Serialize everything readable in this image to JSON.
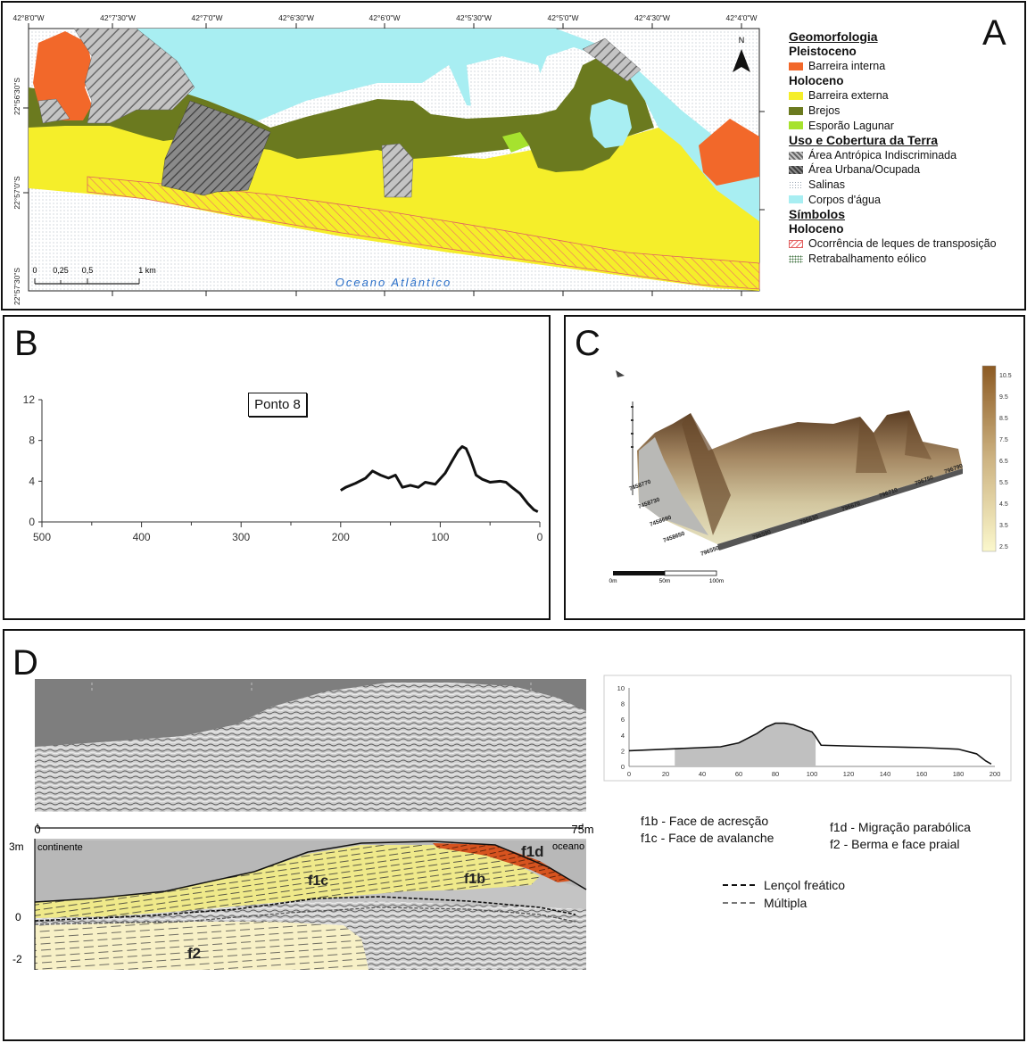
{
  "panel_a": {
    "letter": "A",
    "top_lon_labels": [
      "42°8'0\"W",
      "42°7'30\"W",
      "42°7'0\"W",
      "42°6'30\"W",
      "42°6'0\"W",
      "42°5'30\"W",
      "42°5'0\"W",
      "42°4'30\"W",
      "42°4'0\"W"
    ],
    "left_lat_labels": [
      "22°56'30\"S",
      "22°57'0\"S",
      "22°57'30\"S"
    ],
    "north_label": "N",
    "scale_labels": [
      "0",
      "0,25",
      "0,5",
      "1 km"
    ],
    "ocean_label": "Oceano Atlântico",
    "legend": {
      "title_geo": "Geomorfologia",
      "pleistoceno": "Pleistoceno",
      "barreira_interna": "Barreira interna",
      "holoceno": "Holoceno",
      "barreira_externa": "Barreira externa",
      "brejos": "Brejos",
      "esporao": "Esporão Lagunar",
      "title_uso": "Uso e Cobertura da Terra",
      "antropica": "Área Antrópica Indiscriminada",
      "urbana": "Área Urbana/Ocupada",
      "salinas": "Salinas",
      "corpos": "Corpos d'água",
      "title_simb": "Símbolos",
      "holoceno2": "Holoceno",
      "leques": "Ocorrência de leques de transposição",
      "eolico": "Retrabalhamento eólico"
    },
    "colors": {
      "barreira_interna": "#f2682a",
      "barreira_externa": "#f5ee2a",
      "brejos": "#6b7a1f",
      "esporao": "#a6e22e",
      "antropica": "#b8b8b8",
      "urbana": "#7a7a7a",
      "corpos": "#a8eef2"
    }
  },
  "panel_b": {
    "letter": "B",
    "label": "Ponto 8",
    "chart_data": {
      "type": "line",
      "x": [
        200,
        195,
        185,
        175,
        168,
        160,
        152,
        145,
        138,
        130,
        122,
        115,
        105,
        95,
        88,
        82,
        78,
        74,
        70,
        64,
        58,
        50,
        40,
        34,
        28,
        20,
        12,
        6,
        2
      ],
      "y": [
        3.1,
        3.4,
        3.8,
        4.3,
        5.0,
        4.6,
        4.3,
        4.6,
        3.4,
        3.6,
        3.4,
        3.9,
        3.7,
        4.8,
        6.0,
        7.0,
        7.4,
        7.2,
        6.3,
        4.6,
        4.2,
        3.9,
        4.0,
        3.9,
        3.4,
        2.8,
        1.8,
        1.2,
        1.0
      ],
      "xlim": [
        500,
        0
      ],
      "ylim": [
        0,
        12
      ],
      "xticks": [
        500,
        400,
        300,
        200,
        100,
        0
      ],
      "yticks": [
        0,
        4,
        8,
        12
      ]
    }
  },
  "panel_c": {
    "letter": "C",
    "colorbar_ticks": [
      "10.5",
      "9.5",
      "8.5",
      "7.5",
      "6.5",
      "5.5",
      "4.5",
      "3.5",
      "2.5"
    ],
    "scale_labels": [
      "0m",
      "50m",
      "100m"
    ],
    "y_axis_labels": [
      "7458770",
      "7458730",
      "7458690",
      "7458650"
    ],
    "x_axis_labels": [
      "796550",
      "796590",
      "796630",
      "796670",
      "796710",
      "796750",
      "796790"
    ]
  },
  "panel_d": {
    "letter": "D",
    "scale_start": "0",
    "scale_end": "75m",
    "depth_labels": [
      "3m",
      "0",
      "-2"
    ],
    "continente": "continente",
    "oceano": "oceano",
    "facies": {
      "f1c": "f1c",
      "f1b": "f1b",
      "f1d": "f1d",
      "f2": "f2"
    },
    "descriptions": {
      "f1b": "f1b - Face de acresção",
      "f1c": "f1c - Face de avalanche",
      "f1d": "f1d - Migração parabólica",
      "f2": "f2 - Berma e face praial"
    },
    "line_legend": {
      "lencol": "Lençol freático",
      "multipla": "Múltipla"
    },
    "chart_data": {
      "type": "area",
      "x": [
        0,
        10,
        20,
        30,
        40,
        50,
        60,
        70,
        75,
        80,
        85,
        90,
        95,
        100,
        102,
        105,
        120,
        140,
        160,
        180,
        190,
        195,
        198
      ],
      "y": [
        2.0,
        2.1,
        2.2,
        2.3,
        2.4,
        2.5,
        3.0,
        4.2,
        5.0,
        5.5,
        5.5,
        5.3,
        4.8,
        4.4,
        3.8,
        2.7,
        2.6,
        2.5,
        2.4,
        2.2,
        1.6,
        0.7,
        0.3
      ],
      "xlim": [
        0,
        200
      ],
      "ylim": [
        0,
        10
      ],
      "xticks": [
        0,
        20,
        40,
        60,
        80,
        100,
        120,
        140,
        160,
        180,
        200
      ],
      "yticks": [
        0,
        2,
        4,
        6,
        8,
        10
      ],
      "shaded_range": [
        25,
        102
      ]
    }
  }
}
